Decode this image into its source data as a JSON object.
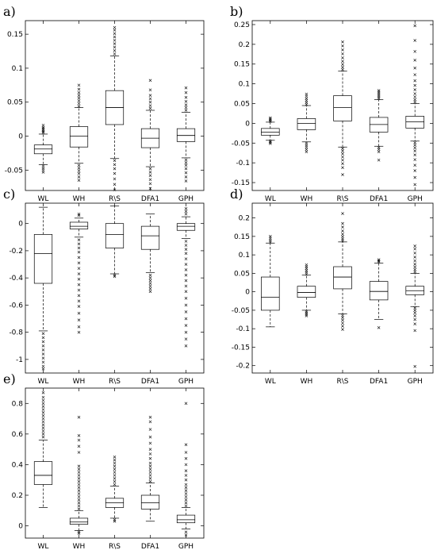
{
  "chart_data": [
    {
      "type": "box",
      "panel_label": "a)",
      "categories": [
        "WL",
        "WH",
        "R\\S",
        "DFA1",
        "GPH"
      ],
      "yticks": [
        -0.05,
        0,
        0.05,
        0.1,
        0.15
      ],
      "ytick_labels": [
        "-0.05",
        "0",
        "0.05",
        "0.1",
        "0.15"
      ],
      "ylim": [
        -0.08,
        0.17
      ],
      "boxes": [
        {
          "category": "WL",
          "whisker_low": -0.042,
          "q1": -0.026,
          "median": -0.019,
          "q3": -0.013,
          "whisker_high": 0.003,
          "outliers_low": [
            -0.044,
            -0.047,
            -0.05,
            -0.053
          ],
          "outliers_high": [
            0.005,
            0.007,
            0.009,
            0.011,
            0.013,
            0.016
          ]
        },
        {
          "category": "WH",
          "whisker_low": -0.04,
          "q1": -0.016,
          "median": 0.0,
          "q3": 0.014,
          "whisker_high": 0.042,
          "outliers_low": [
            -0.043,
            -0.047,
            -0.051,
            -0.055,
            -0.06,
            -0.065
          ],
          "outliers_high": [
            0.044,
            0.048,
            0.052,
            0.056,
            0.06,
            0.064,
            0.069,
            0.075
          ]
        },
        {
          "category": "R\\S",
          "whisker_low": -0.033,
          "q1": 0.017,
          "median": 0.042,
          "q3": 0.067,
          "whisker_high": 0.118,
          "outliers_low": [
            -0.036,
            -0.042,
            -0.048,
            -0.055,
            -0.063,
            -0.071,
            -0.079
          ],
          "outliers_high": [
            0.121,
            0.126,
            0.131,
            0.136,
            0.141,
            0.146,
            0.151,
            0.156,
            0.16
          ]
        },
        {
          "category": "DFA1",
          "whisker_low": -0.045,
          "q1": -0.017,
          "median": -0.003,
          "q3": 0.011,
          "whisker_high": 0.038,
          "outliers_low": [
            -0.048,
            -0.053,
            -0.058,
            -0.064,
            -0.07,
            -0.077
          ],
          "outliers_high": [
            0.041,
            0.045,
            0.05,
            0.055,
            0.06,
            0.068,
            0.082
          ]
        },
        {
          "category": "GPH",
          "whisker_low": -0.032,
          "q1": -0.008,
          "median": 0.001,
          "q3": 0.011,
          "whisker_high": 0.035,
          "outliers_low": [
            -0.035,
            -0.039,
            -0.043,
            -0.048,
            -0.054,
            -0.06,
            -0.066
          ],
          "outliers_high": [
            0.038,
            0.042,
            0.046,
            0.051,
            0.057,
            0.064,
            0.071
          ]
        }
      ]
    },
    {
      "type": "box",
      "panel_label": "b)",
      "categories": [
        "WL",
        "WH",
        "R\\S",
        "DFA1",
        "GPH"
      ],
      "yticks": [
        -0.15,
        -0.1,
        -0.05,
        0,
        0.05,
        0.1,
        0.15,
        0.2,
        0.25
      ],
      "ytick_labels": [
        "-0.15",
        "-0.1",
        "-0.05",
        "0",
        "0.05",
        "0.1",
        "0.15",
        "0.2",
        "0.25"
      ],
      "ylim": [
        -0.17,
        0.26
      ],
      "boxes": [
        {
          "category": "WL",
          "whisker_low": -0.043,
          "q1": -0.03,
          "median": -0.022,
          "q3": -0.013,
          "whisker_high": 0.003,
          "outliers_low": [
            -0.045,
            -0.048,
            -0.051
          ],
          "outliers_high": [
            0.005,
            0.008,
            0.011,
            0.014
          ]
        },
        {
          "category": "WH",
          "whisker_low": -0.047,
          "q1": -0.016,
          "median": 0.0,
          "q3": 0.012,
          "whisker_high": 0.045,
          "outliers_low": [
            -0.05,
            -0.055,
            -0.06,
            -0.066,
            -0.072
          ],
          "outliers_high": [
            0.048,
            0.053,
            0.058,
            0.063,
            0.069,
            0.074
          ]
        },
        {
          "category": "R\\S",
          "whisker_low": -0.06,
          "q1": 0.006,
          "median": 0.04,
          "q3": 0.07,
          "whisker_high": 0.132,
          "outliers_low": [
            -0.064,
            -0.07,
            -0.077,
            -0.085,
            -0.093,
            -0.102,
            -0.112,
            -0.13
          ],
          "outliers_high": [
            0.136,
            0.142,
            0.149,
            0.157,
            0.166,
            0.176,
            0.186,
            0.196,
            0.206
          ]
        },
        {
          "category": "DFA1",
          "whisker_low": -0.058,
          "q1": -0.022,
          "median": -0.003,
          "q3": 0.015,
          "whisker_high": 0.06,
          "outliers_low": [
            -0.061,
            -0.066,
            -0.072,
            -0.093
          ],
          "outliers_high": [
            0.063,
            0.067,
            0.071,
            0.075,
            0.079,
            0.083
          ]
        },
        {
          "category": "GPH",
          "whisker_low": -0.045,
          "q1": -0.012,
          "median": 0.004,
          "q3": 0.018,
          "whisker_high": 0.05,
          "outliers_low": [
            -0.049,
            -0.055,
            -0.062,
            -0.07,
            -0.08,
            -0.092,
            -0.106,
            -0.12,
            -0.137,
            -0.155
          ],
          "outliers_high": [
            0.054,
            0.06,
            0.067,
            0.075,
            0.085,
            0.096,
            0.108,
            0.123,
            0.14,
            0.16,
            0.182,
            0.21,
            0.247
          ]
        }
      ]
    },
    {
      "type": "box",
      "panel_label": "c)",
      "categories": [
        "WL",
        "WH",
        "R\\S",
        "DFA1",
        "GPH"
      ],
      "yticks": [
        -1,
        -0.8,
        -0.6,
        -0.4,
        -0.2,
        0
      ],
      "ytick_labels": [
        "-1",
        "-0.8",
        "-0.6",
        "-0.4",
        "-0.2",
        "0"
      ],
      "ylim": [
        -1.1,
        0.15
      ],
      "boxes": [
        {
          "category": "WL",
          "whisker_low": -0.79,
          "q1": -0.44,
          "median": -0.22,
          "q3": -0.08,
          "whisker_high": 0.12,
          "outliers_low": [
            -0.81,
            -0.84,
            -0.87,
            -0.9,
            -0.93,
            -0.96,
            -0.99,
            -1.02,
            -1.05,
            -1.07
          ],
          "outliers_high": []
        },
        {
          "category": "WH",
          "whisker_low": -0.1,
          "q1": -0.04,
          "median": -0.02,
          "q3": 0.01,
          "whisker_high": 0.04,
          "outliers_low": [
            -0.12,
            -0.15,
            -0.18,
            -0.21,
            -0.25,
            -0.29,
            -0.33,
            -0.37,
            -0.41,
            -0.45,
            -0.49,
            -0.53,
            -0.57,
            -0.61,
            -0.66,
            -0.71,
            -0.76,
            -0.8
          ],
          "outliers_high": [
            0.06,
            0.07
          ]
        },
        {
          "category": "R\\S",
          "whisker_low": -0.37,
          "q1": -0.18,
          "median": -0.08,
          "q3": 0.0,
          "whisker_high": 0.13,
          "outliers_low": [
            -0.38,
            -0.39
          ],
          "outliers_high": []
        },
        {
          "category": "DFA1",
          "whisker_low": -0.36,
          "q1": -0.19,
          "median": -0.09,
          "q3": -0.02,
          "whisker_high": 0.07,
          "outliers_low": [
            -0.38,
            -0.4,
            -0.42,
            -0.44,
            -0.46,
            -0.48,
            -0.5
          ],
          "outliers_high": []
        },
        {
          "category": "GPH",
          "whisker_low": -0.11,
          "q1": -0.05,
          "median": -0.02,
          "q3": 0.0,
          "whisker_high": 0.05,
          "outliers_low": [
            -0.13,
            -0.16,
            -0.19,
            -0.22,
            -0.26,
            -0.3,
            -0.34,
            -0.38,
            -0.42,
            -0.46,
            -0.5,
            -0.55,
            -0.6,
            -0.65,
            -0.7,
            -0.75,
            -0.8,
            -0.85,
            -0.9
          ],
          "outliers_high": [
            0.07,
            0.09,
            0.11
          ]
        }
      ]
    },
    {
      "type": "box",
      "panel_label": "d)",
      "categories": [
        "WL",
        "WH",
        "R\\S",
        "DFA1",
        "GPH"
      ],
      "yticks": [
        -0.2,
        -0.15,
        -0.1,
        -0.05,
        0,
        0.05,
        0.1,
        0.15,
        0.2
      ],
      "ytick_labels": [
        "-0.2",
        "-0.15",
        "-0.1",
        "-0.05",
        "0",
        "0.05",
        "0.1",
        "0.15",
        "0.2"
      ],
      "ylim": [
        -0.22,
        0.24
      ],
      "boxes": [
        {
          "category": "WL",
          "whisker_low": -0.095,
          "q1": -0.05,
          "median": -0.015,
          "q3": 0.04,
          "whisker_high": 0.132,
          "outliers_low": [],
          "outliers_high": [
            0.135,
            0.14,
            0.145,
            0.15
          ]
        },
        {
          "category": "WH",
          "whisker_low": -0.05,
          "q1": -0.015,
          "median": -0.002,
          "q3": 0.015,
          "whisker_high": 0.045,
          "outliers_low": [
            -0.053,
            -0.057,
            -0.061,
            -0.065
          ],
          "outliers_high": [
            0.048,
            0.053,
            0.058,
            0.063,
            0.068,
            0.073
          ]
        },
        {
          "category": "R\\S",
          "whisker_low": -0.06,
          "q1": 0.008,
          "median": 0.04,
          "q3": 0.068,
          "whisker_high": 0.135,
          "outliers_low": [
            -0.064,
            -0.07,
            -0.077,
            -0.085,
            -0.093,
            -0.102
          ],
          "outliers_high": [
            0.138,
            0.143,
            0.149,
            0.156,
            0.165,
            0.175,
            0.185,
            0.212
          ]
        },
        {
          "category": "DFA1",
          "whisker_low": -0.075,
          "q1": -0.022,
          "median": 0.001,
          "q3": 0.028,
          "whisker_high": 0.078,
          "outliers_low": [
            -0.097
          ],
          "outliers_high": [
            0.081,
            0.084,
            0.087
          ]
        },
        {
          "category": "GPH",
          "whisker_low": -0.04,
          "q1": -0.008,
          "median": 0.003,
          "q3": 0.015,
          "whisker_high": 0.05,
          "outliers_low": [
            -0.044,
            -0.05,
            -0.057,
            -0.065,
            -0.075,
            -0.087,
            -0.105,
            -0.202
          ],
          "outliers_high": [
            0.054,
            0.06,
            0.067,
            0.075,
            0.084,
            0.094,
            0.105,
            0.116,
            0.124
          ]
        }
      ]
    },
    {
      "type": "box",
      "panel_label": "e)",
      "categories": [
        "WL",
        "WH",
        "R\\S",
        "DFA1",
        "GPH"
      ],
      "yticks": [
        0,
        0.2,
        0.4,
        0.6,
        0.8
      ],
      "ytick_labels": [
        "0",
        "0.2",
        "0.4",
        "0.6",
        "0.8"
      ],
      "ylim": [
        -0.08,
        0.9
      ],
      "boxes": [
        {
          "category": "WL",
          "whisker_low": 0.12,
          "q1": 0.27,
          "median": 0.33,
          "q3": 0.42,
          "whisker_high": 0.56,
          "outliers_low": [],
          "outliers_high": [
            0.58,
            0.6,
            0.62,
            0.64,
            0.66,
            0.68,
            0.7,
            0.72,
            0.74,
            0.76,
            0.78,
            0.8,
            0.82,
            0.84,
            0.87
          ]
        },
        {
          "category": "WH",
          "whisker_low": -0.03,
          "q1": 0.01,
          "median": 0.025,
          "q3": 0.05,
          "whisker_high": 0.1,
          "outliers_low": [
            -0.04,
            -0.05
          ],
          "outliers_high": [
            0.11,
            0.13,
            0.15,
            0.17,
            0.19,
            0.21,
            0.23,
            0.25,
            0.27,
            0.29,
            0.31,
            0.33,
            0.35,
            0.37,
            0.39,
            0.48,
            0.52,
            0.56,
            0.59,
            0.71
          ]
        },
        {
          "category": "R\\S",
          "whisker_low": 0.05,
          "q1": 0.12,
          "median": 0.15,
          "q3": 0.18,
          "whisker_high": 0.26,
          "outliers_low": [
            0.04,
            0.03
          ],
          "outliers_high": [
            0.27,
            0.29,
            0.31,
            0.33,
            0.35,
            0.37,
            0.39,
            0.41,
            0.43,
            0.45
          ]
        },
        {
          "category": "DFA1",
          "whisker_low": 0.03,
          "q1": 0.11,
          "median": 0.15,
          "q3": 0.2,
          "whisker_high": 0.28,
          "outliers_low": [],
          "outliers_high": [
            0.29,
            0.31,
            0.33,
            0.35,
            0.37,
            0.39,
            0.41,
            0.44,
            0.47,
            0.5,
            0.54,
            0.58,
            0.63,
            0.68,
            0.71
          ]
        },
        {
          "category": "GPH",
          "whisker_low": -0.02,
          "q1": 0.02,
          "median": 0.04,
          "q3": 0.07,
          "whisker_high": 0.12,
          "outliers_low": [
            -0.04,
            -0.06
          ],
          "outliers_high": [
            0.13,
            0.15,
            0.17,
            0.19,
            0.21,
            0.23,
            0.25,
            0.27,
            0.3,
            0.33,
            0.36,
            0.4,
            0.44,
            0.48,
            0.53,
            0.8
          ]
        }
      ]
    }
  ]
}
